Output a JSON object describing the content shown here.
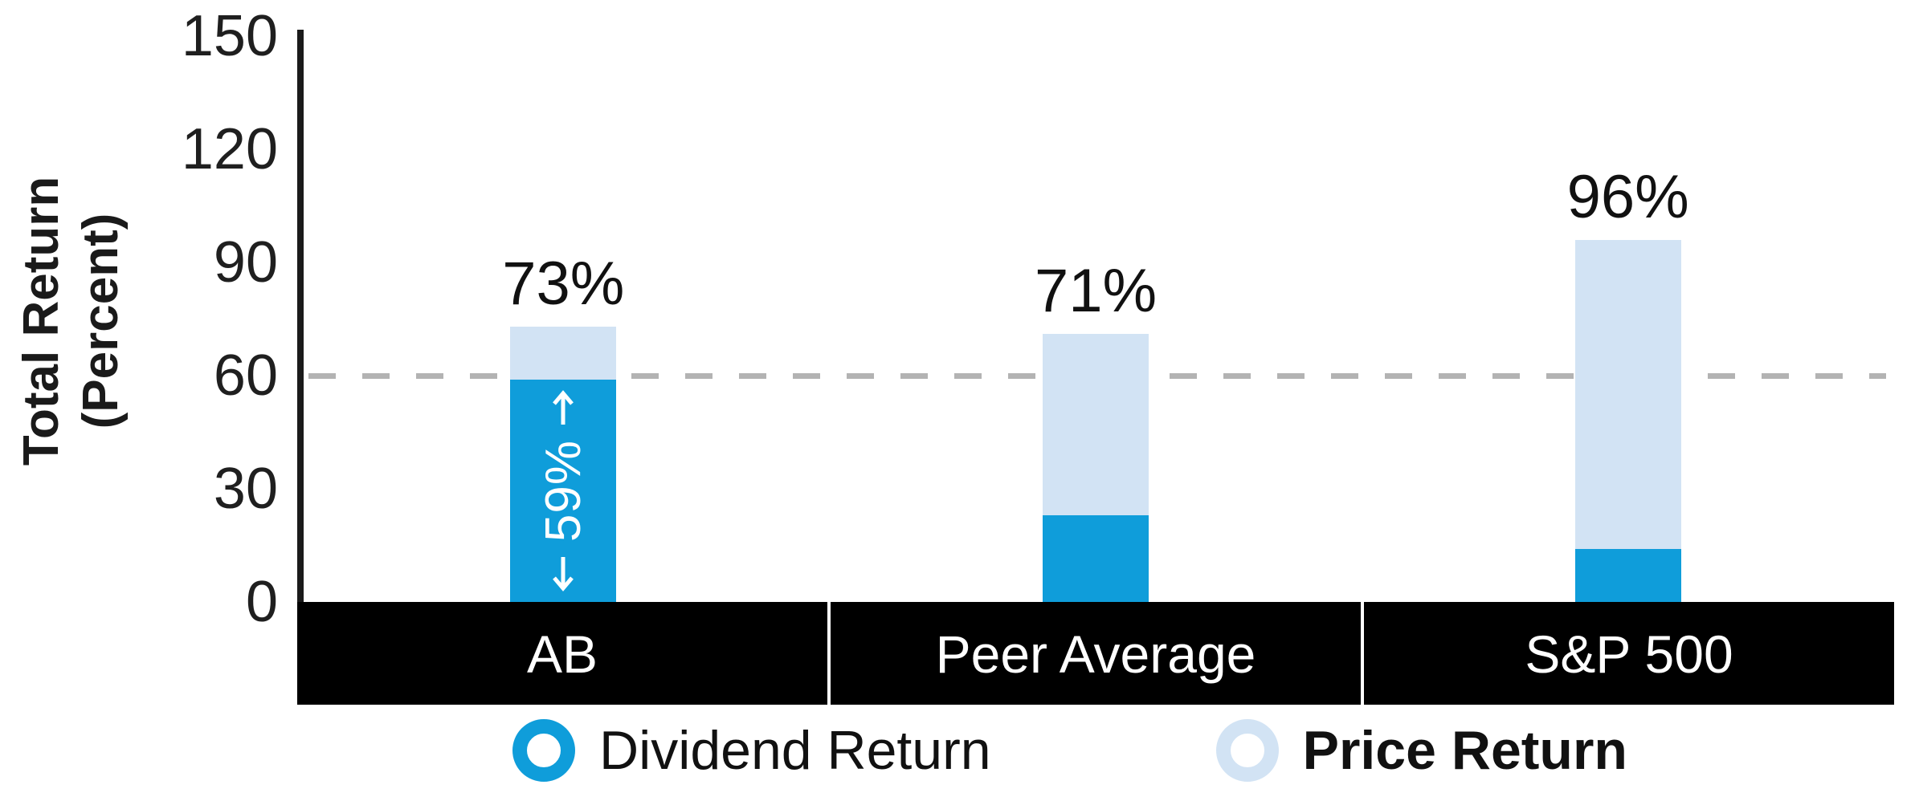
{
  "chart_data": {
    "type": "bar",
    "stacked": true,
    "title": "",
    "categories": [
      "AB",
      "Peer Average",
      "S&P 500"
    ],
    "series": [
      {
        "name": "Dividend Return",
        "values": [
          59,
          23,
          14
        ],
        "color": "#0f9dda"
      },
      {
        "name": "Price Return",
        "values": [
          14,
          48,
          82
        ],
        "color": "#d2e3f4"
      }
    ],
    "totals": [
      73,
      71,
      96
    ],
    "total_labels": [
      "73%",
      "71%",
      "96%"
    ],
    "ylabel": "Total Return (Percent)",
    "ylabel_line1": "Total Return",
    "ylabel_line2": "(Percent)",
    "yticks": [
      0,
      30,
      60,
      90,
      120,
      150
    ],
    "ylim": [
      0,
      150
    ],
    "grid": "off",
    "reference_line": {
      "value": 60,
      "style": "dashed",
      "color": "#b3b3b3"
    },
    "bar_annotation": {
      "category": "AB",
      "series": "Dividend Return",
      "label": "59%",
      "up_arrow_icon": "arrow-up",
      "down_arrow_icon": "arrow-down"
    },
    "legend_position": "bottom",
    "legend": [
      {
        "label": "Dividend Return",
        "color": "#0f9dda",
        "bold": false
      },
      {
        "label": "Price Return",
        "color": "#d2e3f4",
        "bold": true
      }
    ],
    "axis_band_color": "#000000",
    "axis_text_color": "#ffffff"
  }
}
